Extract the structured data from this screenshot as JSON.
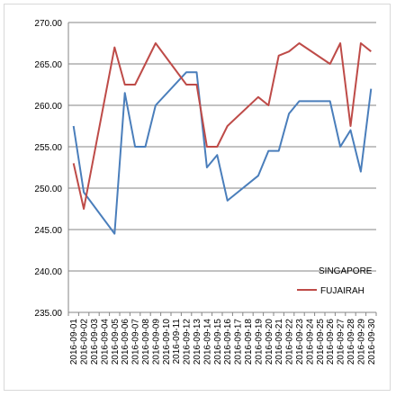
{
  "chart_data": {
    "type": "line",
    "title": "",
    "xlabel": "",
    "ylabel": "",
    "ylim": [
      235,
      270
    ],
    "y_ticks": [
      "235.00",
      "240.00",
      "245.00",
      "250.00",
      "255.00",
      "260.00",
      "265.00",
      "270.00"
    ],
    "grid": "horizontal",
    "legend_position": "bottom-right",
    "categories": [
      "2016-09-01",
      "2016-09-02",
      "2016-09-03",
      "2016-09-04",
      "2016-09-05",
      "2016-09-06",
      "2016-09-07",
      "2016-09-08",
      "2016-09-09",
      "2016-09-10",
      "2016-09-11",
      "2016-09-12",
      "2016-09-13",
      "2016-09-14",
      "2016-09-15",
      "2016-09-16",
      "2016-09-17",
      "2016-09-18",
      "2016-09-19",
      "2016-09-20",
      "2016-09-21",
      "2016-09-22",
      "2016-09-23",
      "2016-09-24",
      "2016-09-25",
      "2016-09-26",
      "2016-09-27",
      "2016-09-28",
      "2016-09-29",
      "2016-09-30"
    ],
    "series": [
      {
        "name": "SINGAPORE",
        "color": "#4a7ebb",
        "values": [
          257.5,
          249.5,
          null,
          null,
          244.5,
          261.5,
          255.0,
          255.0,
          260.0,
          null,
          null,
          264.0,
          264.0,
          252.5,
          254.0,
          248.5,
          null,
          null,
          251.5,
          254.5,
          254.5,
          259.0,
          260.5,
          null,
          null,
          260.5,
          255.0,
          257.0,
          252.0,
          262.0
        ]
      },
      {
        "name": "FUJAIRAH",
        "color": "#be4b48",
        "values": [
          253.0,
          247.5,
          null,
          null,
          267.0,
          262.5,
          262.5,
          null,
          267.5,
          null,
          null,
          262.5,
          262.5,
          255.0,
          255.0,
          257.5,
          null,
          null,
          261.0,
          260.0,
          266.0,
          266.5,
          267.5,
          null,
          null,
          265.0,
          267.5,
          257.5,
          267.5,
          266.5
        ]
      }
    ]
  }
}
